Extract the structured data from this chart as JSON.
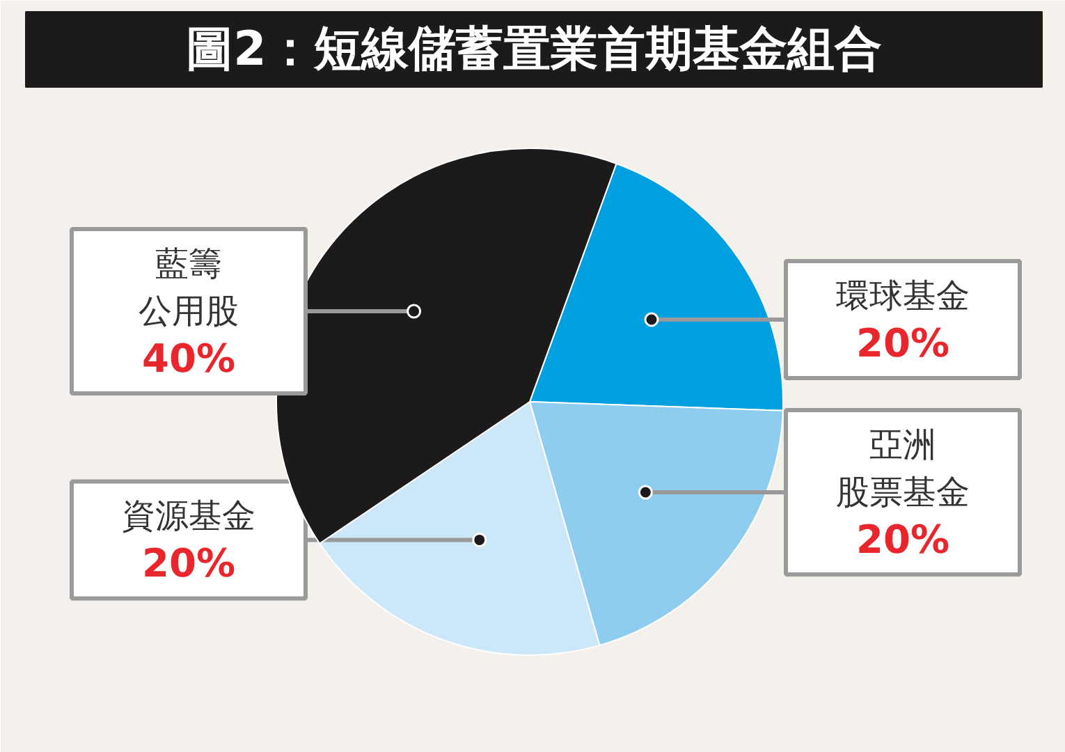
{
  "chart_data": {
    "type": "pie",
    "title": "圖2：短線儲蓄置業首期基金組合",
    "categories": [
      "環球基金",
      "亞洲股票基金",
      "資源基金",
      "藍籌公用股"
    ],
    "values": [
      20,
      20,
      20,
      40
    ],
    "value_labels": [
      "20%",
      "20%",
      "20%",
      "40%"
    ],
    "colors": [
      "#009fe0",
      "#8ecdf0",
      "#cbe7f8",
      "#1c1a1b"
    ]
  }
}
